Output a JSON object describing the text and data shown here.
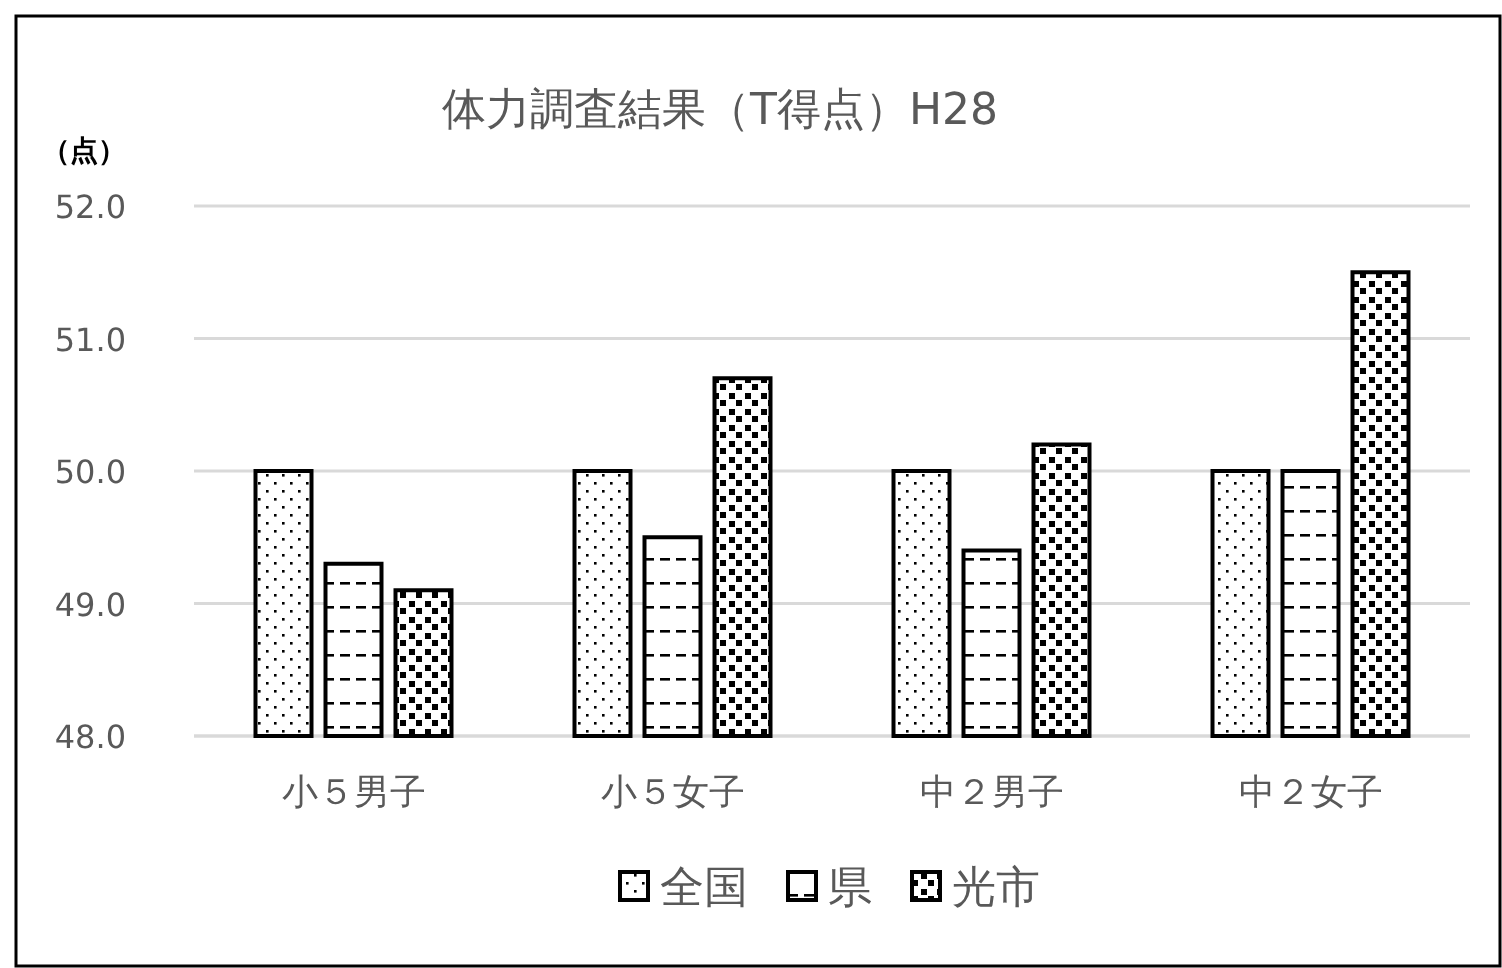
{
  "chart_data": {
    "type": "bar",
    "title": "体力調査結果（T得点）H28",
    "ylabel": "（点）",
    "categories": [
      "小５男子",
      "小５女子",
      "中２男子",
      "中２女子"
    ],
    "series": [
      {
        "name": "全国",
        "color": "#000000",
        "values": [
          50.0,
          50.0,
          50.0,
          50.0
        ]
      },
      {
        "name": "県",
        "color": "#000000",
        "values": [
          49.3,
          49.5,
          49.4,
          50.0
        ]
      },
      {
        "name": "光市",
        "color": "#000000",
        "values": [
          49.1,
          50.7,
          50.2,
          51.5
        ]
      }
    ],
    "ylim": [
      48,
      52
    ],
    "yticks": [
      {
        "value": 48,
        "label": "48.0"
      },
      {
        "value": 49,
        "label": "49.0"
      },
      {
        "value": 50,
        "label": "50.0"
      },
      {
        "value": 51,
        "label": "51.0"
      },
      {
        "value": 52,
        "label": "52.0"
      }
    ],
    "grid": "y",
    "legend": "bottom"
  }
}
